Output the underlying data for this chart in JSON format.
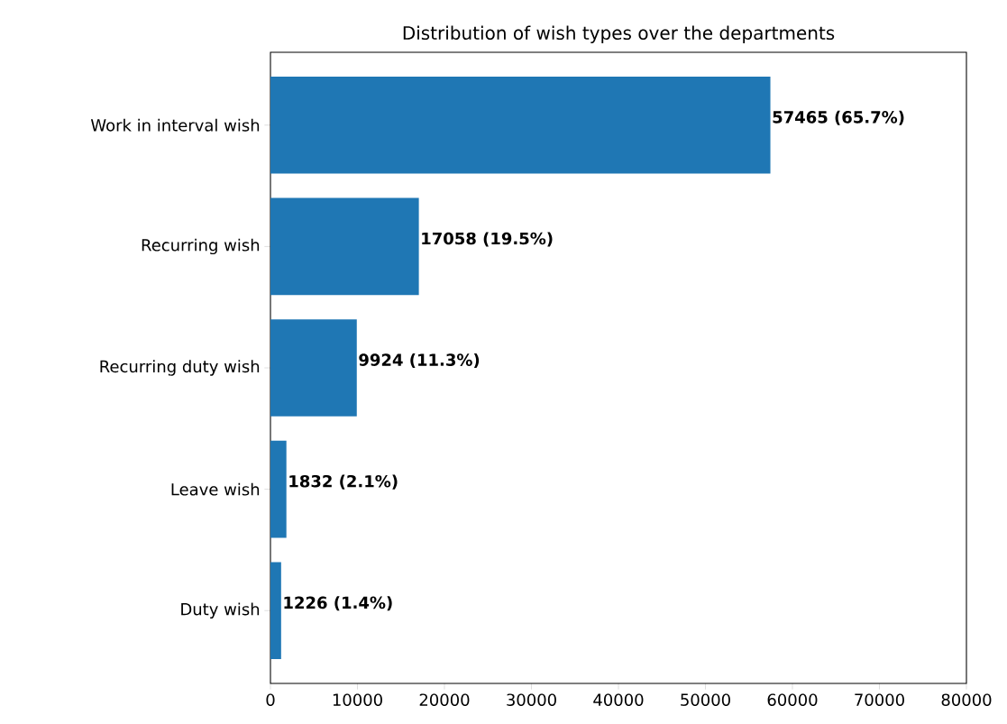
{
  "chart_data": {
    "type": "bar",
    "orientation": "horizontal",
    "title": "Distribution of wish types over the departments",
    "categories": [
      "Work in interval wish",
      "Recurring wish",
      "Recurring duty wish",
      "Leave wish",
      "Duty wish"
    ],
    "values": [
      57465,
      17058,
      9924,
      1832,
      1226
    ],
    "value_labels": [
      "57465 (65.7%)",
      "17058 (19.5%)",
      "9924 (11.3%)",
      "1832 (2.1%)",
      "1226 (1.4%)"
    ],
    "color": "#1f77b4",
    "xlim": [
      0,
      80000
    ],
    "xticks": [
      0,
      10000,
      20000,
      30000,
      40000,
      50000,
      60000,
      70000,
      80000
    ]
  }
}
